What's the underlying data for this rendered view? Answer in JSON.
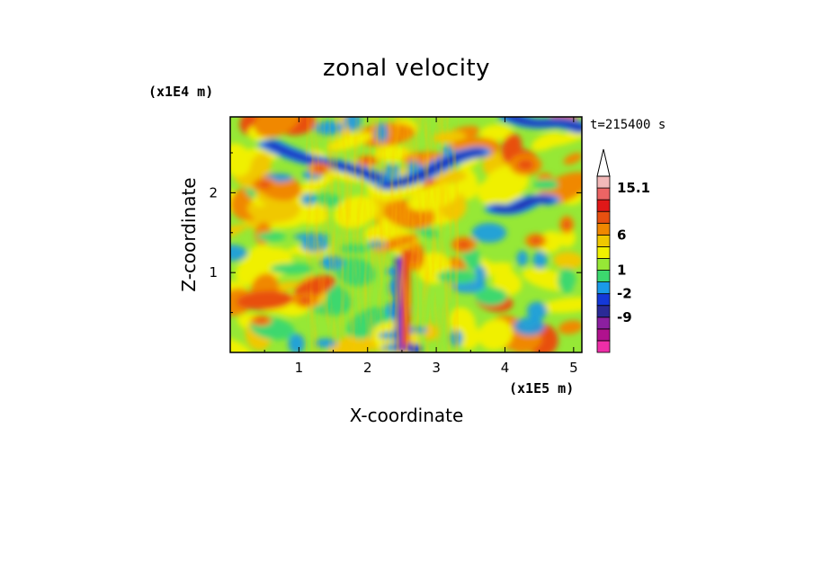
{
  "chart_data": {
    "type": "heatmap",
    "title": "zonal velocity",
    "xlabel": "X-coordinate",
    "ylabel": "Z-coordinate",
    "x_unit": "(x1E5 m)",
    "y_unit": "(x1E4 m)",
    "time_label": "t=215400 s",
    "xlim": [
      0,
      5.12
    ],
    "ylim": [
      0,
      2.95
    ],
    "x_ticks": [
      1,
      2,
      3,
      4,
      5
    ],
    "y_ticks": [
      1,
      2
    ],
    "colorbar": {
      "labels": [
        "15.1",
        "6",
        "1",
        "-2",
        "-9"
      ],
      "colors": [
        "#ee2ea8",
        "#b0128e",
        "#8c1fa0",
        "#2a2a96",
        "#1438d8",
        "#1a9ae8",
        "#3cd86e",
        "#96e836",
        "#f0f000",
        "#f0c800",
        "#f08800",
        "#e85010",
        "#e01818",
        "#ec6464",
        "#f2b8b8"
      ],
      "extend_top": true
    },
    "features": {
      "blue_bands": [
        {
          "x_start": 0.6,
          "z_start": 2.6,
          "x_end": 2.2,
          "z_end": 2.15
        },
        {
          "x_start": 2.3,
          "z_start": 2.1,
          "x_end": 3.6,
          "z_end": 2.5
        },
        {
          "x_start": 3.9,
          "z_start": 1.8,
          "x_end": 4.6,
          "z_end": 1.9
        },
        {
          "x_start": 4.1,
          "z_start": 2.95,
          "x_end": 5.1,
          "z_end": 2.8
        }
      ],
      "vertical_jet_x": 2.45
    }
  }
}
